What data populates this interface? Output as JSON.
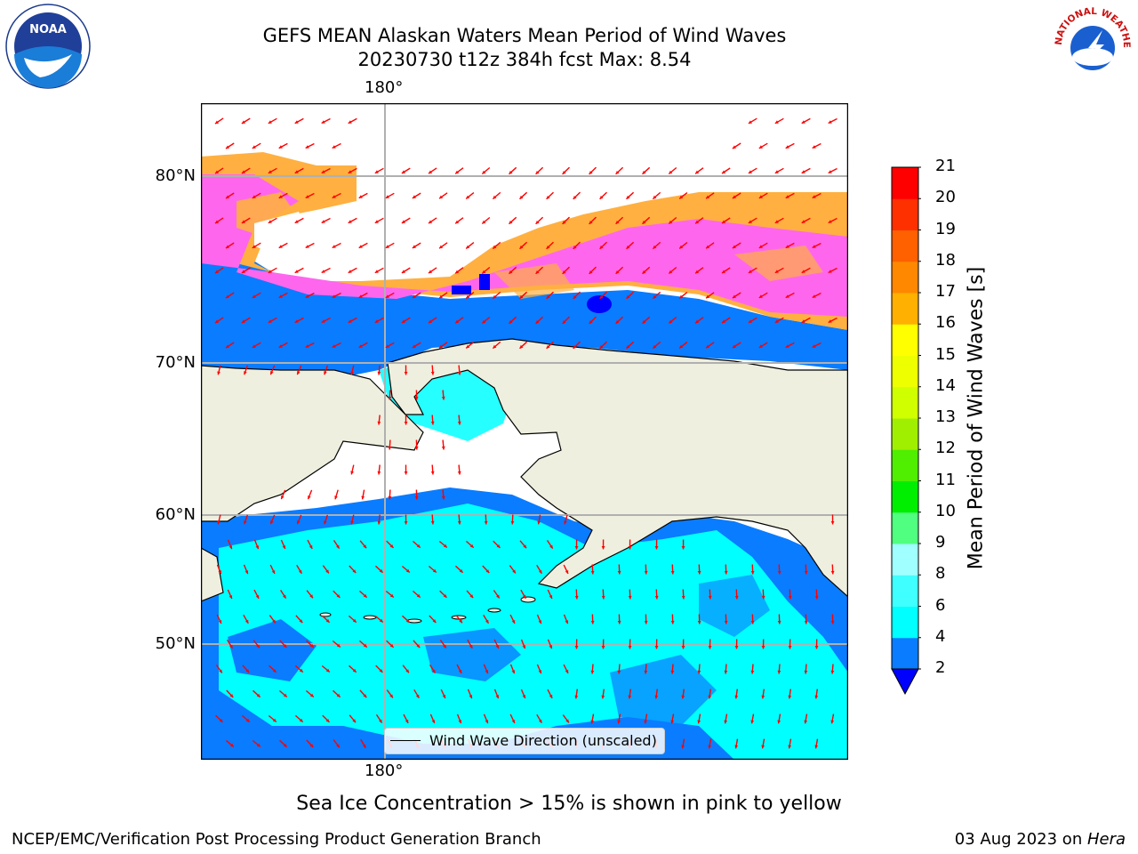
{
  "title": {
    "line1": "GEFS MEAN Alaskan Waters Mean Period of Wind Waves",
    "line2": "20230730 t12z 384h fcst   Max: 8.54"
  },
  "logos": {
    "left": "noaa-logo",
    "right_text": "NATIONAL WEATHER SERVICE"
  },
  "map": {
    "lon_labels": {
      "top": "180°",
      "bottom": "180°"
    },
    "lat_labels": [
      "80°N",
      "70°N",
      "60°N",
      "50°N"
    ],
    "colors": {
      "land": "#efefdf",
      "ice_pink": "#ff66ee",
      "ice_orange": "#ffb040",
      "wave_blue": "#0a7cff",
      "wave_cyan": "#00ffff",
      "arrow": "#ff0000",
      "grid": "#b0b0b0"
    }
  },
  "legend": {
    "label": "Wind Wave Direction (unscaled)"
  },
  "colorbar": {
    "label": "Mean Period of Wind Waves [s]",
    "ticks": [
      "2",
      "4",
      "6",
      "8",
      "9",
      "10",
      "11",
      "12",
      "13",
      "14",
      "15",
      "16",
      "17",
      "18",
      "19",
      "20",
      "21"
    ],
    "colors": [
      "#0a7cff",
      "#00ffff",
      "#40ffff",
      "#a0ffff",
      "#50ff80",
      "#00ee00",
      "#50ee00",
      "#a0ee00",
      "#d0ff00",
      "#eeff00",
      "#ffff00",
      "#ffb000",
      "#ff8800",
      "#ff6000",
      "#ff3000",
      "#ff0000"
    ],
    "under_color": "#0000ff"
  },
  "note": "Sea Ice Concentration > 15% is shown in pink to yellow",
  "footer": {
    "left": "NCEP/EMC/Verification Post Processing Product Generation Branch",
    "right_date": "03 Aug 2023 on ",
    "right_machine": "Hera"
  }
}
